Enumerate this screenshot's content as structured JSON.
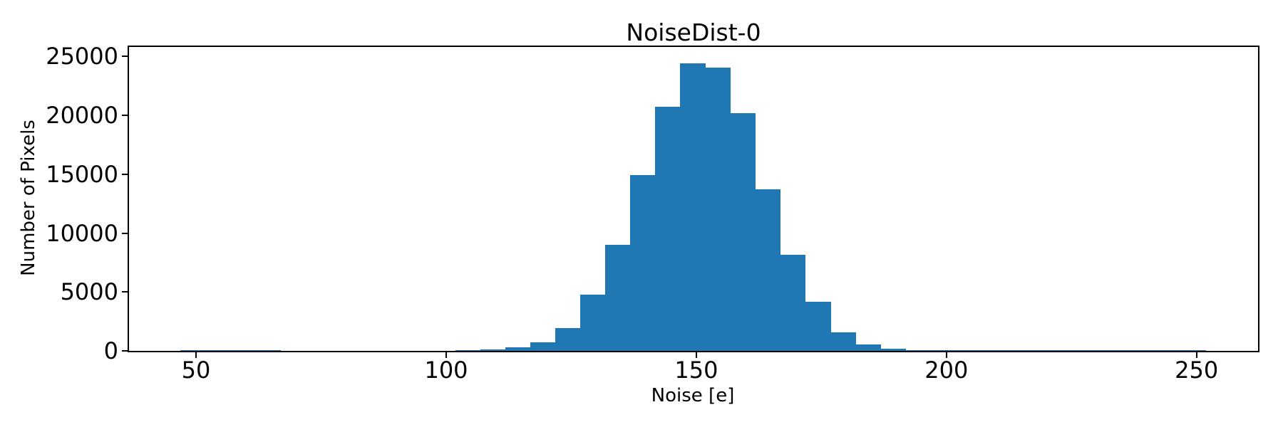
{
  "figure": {
    "background": "#ffffff",
    "frame_color": "#000000",
    "text_color": "#000000"
  },
  "chart_data": {
    "type": "bar",
    "subtype": "histogram",
    "title": "NoiseDist-0",
    "xlabel": "Noise [e]",
    "ylabel": "Number of Pixels",
    "bar_color": "#1f77b4",
    "bin_start": 46.8,
    "bin_width": 5.0,
    "values": [
      60,
      70,
      75,
      60,
      0,
      0,
      0,
      0,
      0,
      0,
      0,
      90,
      140,
      300,
      700,
      1950,
      4800,
      9030,
      14900,
      20730,
      24430,
      24070,
      20180,
      13690,
      8160,
      4180,
      1590,
      560,
      195,
      90,
      50,
      40,
      25,
      70,
      70,
      70,
      70,
      65,
      60,
      40,
      35
    ],
    "xticks": [
      50,
      100,
      150,
      200,
      250
    ],
    "yticks": [
      0,
      5000,
      10000,
      15000,
      20000,
      25000
    ],
    "xlim": [
      36.6,
      262.3
    ],
    "ylim": [
      0,
      25800
    ],
    "grid": false,
    "legend": "none",
    "frame": "full-box"
  }
}
